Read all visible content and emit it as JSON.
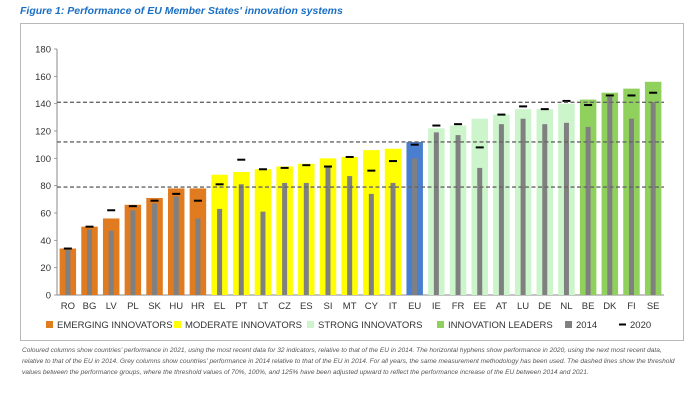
{
  "header": {
    "title": "Figure 1: Performance of EU Member States' innovation systems"
  },
  "caption": "Coloured columns show countries' performance in 2021, using the most recent data for 32 indicators, relative to that of the EU in 2014. The horizontal hyphens show performance in 2020, using the next most recent data, relative to that of the EU in 2014. Grey columns show countries' performance in 2014 relative to that of the EU in 2014. For all years, the same measurement methodology has been used. The dashed lines show the threshold values between the performance groups, where the threshold values of 70%, 100%, and 125% have been adjusted upward to reflect the performance increase of the EU between 2014 and 2021.",
  "chart_data": {
    "type": "bar",
    "title": "Figure 1: Performance of EU Member States' innovation systems",
    "xlabel": "",
    "ylabel": "",
    "ylim": [
      0,
      180
    ],
    "yticks": [
      0,
      20,
      40,
      60,
      80,
      100,
      120,
      140,
      160,
      180
    ],
    "categories": [
      "RO",
      "BG",
      "LV",
      "PL",
      "SK",
      "HU",
      "HR",
      "EL",
      "PT",
      "LT",
      "CZ",
      "ES",
      "SI",
      "MT",
      "CY",
      "IT",
      "EU",
      "IE",
      "FR",
      "EE",
      "AT",
      "LU",
      "DE",
      "NL",
      "BE",
      "DK",
      "FI",
      "SE"
    ],
    "series": [
      {
        "name": "2021",
        "values": [
          34,
          50,
          56,
          66,
          71,
          78,
          78,
          88,
          90,
          92,
          94,
          96,
          100,
          101,
          106,
          107,
          112,
          122,
          124,
          129,
          132,
          136,
          136,
          140,
          143,
          148,
          151,
          156
        ]
      },
      {
        "name": "2014",
        "values": [
          33,
          48,
          47,
          62,
          67,
          72,
          56,
          63,
          81,
          61,
          82,
          82,
          94,
          87,
          74,
          82,
          100,
          119,
          117,
          93,
          125,
          129,
          125,
          126,
          123,
          145,
          129,
          141
        ]
      },
      {
        "name": "2020",
        "values": [
          34,
          50,
          62,
          65,
          69,
          74,
          69,
          81,
          99,
          92,
          93,
          95,
          94,
          101,
          91,
          98,
          110,
          124,
          125,
          108,
          132,
          138,
          136,
          142,
          139,
          146,
          146,
          148
        ]
      }
    ],
    "groups": [
      {
        "name": "EMERGING INNOVATORS",
        "color": "#e07b20",
        "members": [
          "RO",
          "BG",
          "LV",
          "PL",
          "SK",
          "HU",
          "HR"
        ]
      },
      {
        "name": "MODERATE INNOVATORS",
        "color": "#ffff00",
        "members": [
          "EL",
          "PT",
          "LT",
          "CZ",
          "ES",
          "SI",
          "MT",
          "CY",
          "IT"
        ]
      },
      {
        "name": "EU",
        "color": "#4a7fcf",
        "members": [
          "EU"
        ]
      },
      {
        "name": "STRONG INNOVATORS",
        "color": "#ccf5cc",
        "members": [
          "IE",
          "FR",
          "EE",
          "AT",
          "LU",
          "DE",
          "NL"
        ]
      },
      {
        "name": "INNOVATION LEADERS",
        "color": "#8fd15c",
        "members": [
          "BE",
          "DK",
          "FI",
          "SE"
        ]
      }
    ],
    "thresholds": [
      79,
      112,
      141
    ],
    "legend": [
      {
        "label": "EMERGING INNOVATORS",
        "kind": "swatch",
        "color": "#e07b20"
      },
      {
        "label": "MODERATE INNOVATORS",
        "kind": "swatch",
        "color": "#ffff00"
      },
      {
        "label": "STRONG INNOVATORS",
        "kind": "swatch",
        "color": "#ccf5cc"
      },
      {
        "label": "INNOVATION LEADERS",
        "kind": "swatch",
        "color": "#8fd15c"
      },
      {
        "label": "2014",
        "kind": "swatch",
        "color": "#808080"
      },
      {
        "label": "2020",
        "kind": "dash",
        "color": "#000000"
      }
    ],
    "colors": {
      "grey_2014": "#808080",
      "dash_2020": "#000000",
      "threshold_line": "#666666"
    }
  }
}
